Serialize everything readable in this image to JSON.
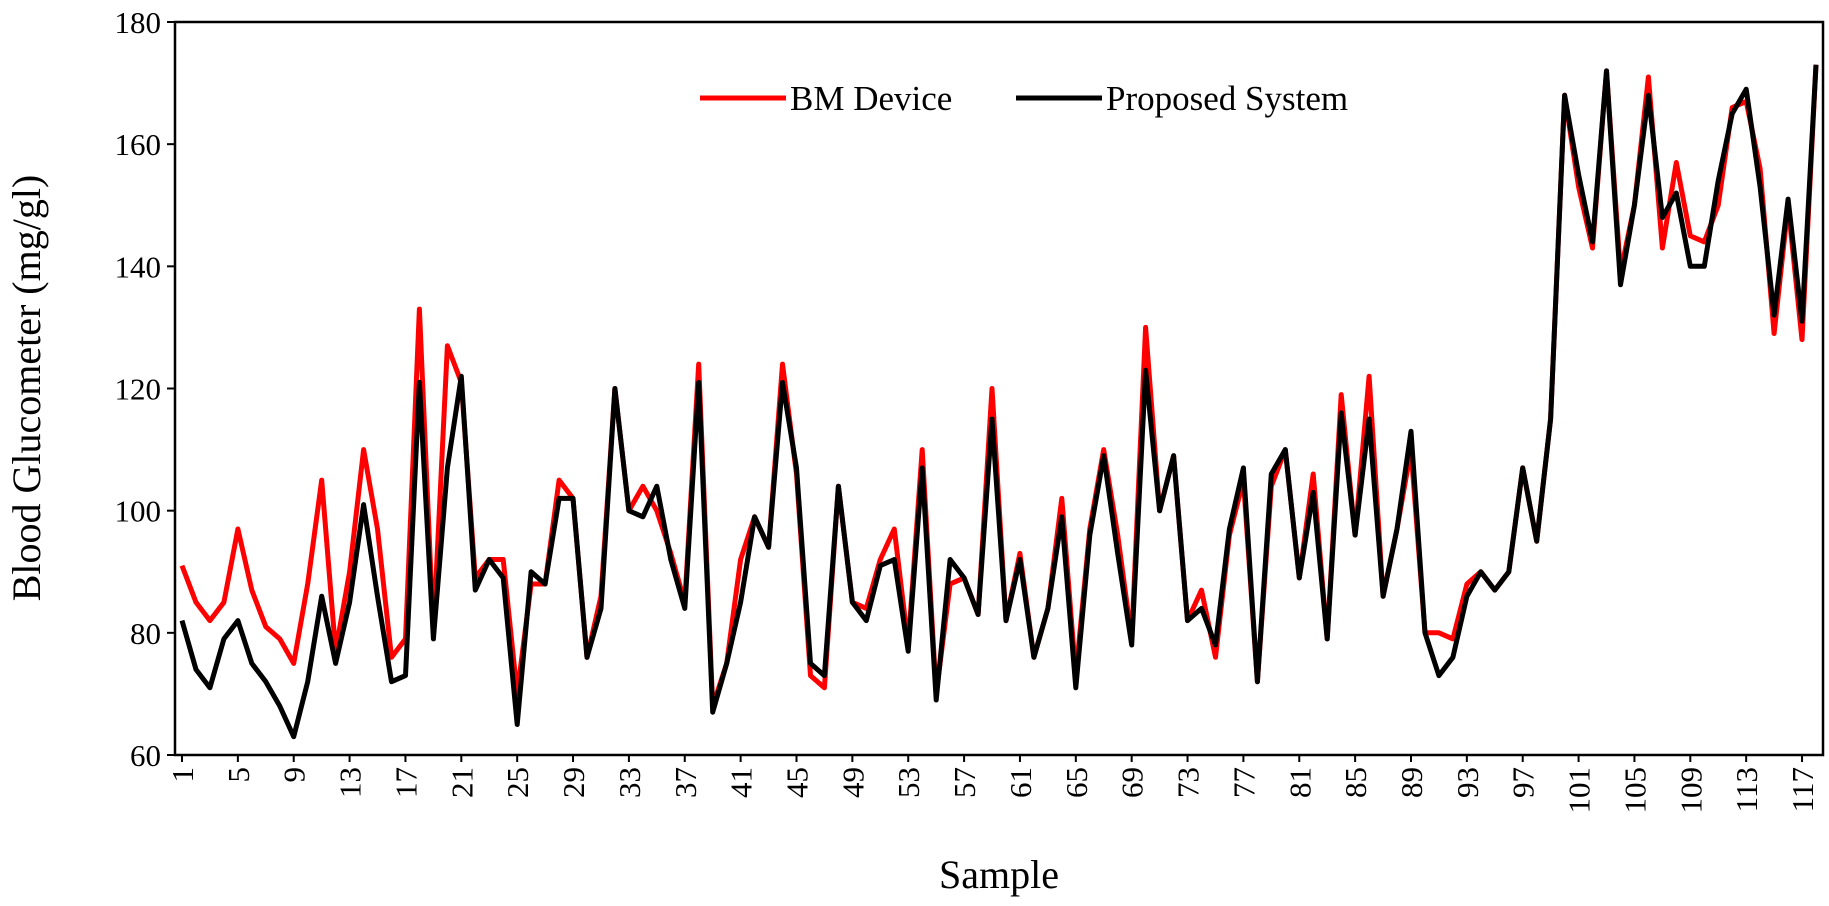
{
  "chart_data": {
    "type": "line",
    "title": "",
    "xlabel": "Sample",
    "ylabel": "Blood Glucometer (mg/gl)",
    "x": [
      1,
      2,
      3,
      4,
      5,
      6,
      7,
      8,
      9,
      10,
      11,
      12,
      13,
      14,
      15,
      16,
      17,
      18,
      19,
      20,
      21,
      22,
      23,
      24,
      25,
      26,
      27,
      28,
      29,
      30,
      31,
      32,
      33,
      34,
      35,
      36,
      37,
      38,
      39,
      40,
      41,
      42,
      43,
      44,
      45,
      46,
      47,
      48,
      49,
      50,
      51,
      52,
      53,
      54,
      55,
      56,
      57,
      58,
      59,
      60,
      61,
      62,
      63,
      64,
      65,
      66,
      67,
      68,
      69,
      70,
      71,
      72,
      73,
      74,
      75,
      76,
      77,
      78,
      79,
      80,
      81,
      82,
      83,
      84,
      85,
      86,
      87,
      88,
      89,
      90,
      91,
      92,
      93,
      94,
      95,
      96,
      97,
      98,
      99,
      100,
      101,
      102,
      103,
      104,
      105,
      106,
      107,
      108,
      109,
      110,
      111,
      112,
      113,
      114,
      115,
      116,
      117,
      118
    ],
    "x_tick_labels": [
      "1",
      "5",
      "9",
      "13",
      "17",
      "21",
      "25",
      "29",
      "33",
      "37",
      "41",
      "45",
      "49",
      "53",
      "57",
      "61",
      "65",
      "69",
      "73",
      "77",
      "81",
      "85",
      "89",
      "93",
      "97",
      "101",
      "105",
      "109",
      "113",
      "117"
    ],
    "ylim": [
      60,
      180
    ],
    "y_ticks": [
      60,
      80,
      100,
      120,
      140,
      160,
      180
    ],
    "grid": false,
    "legend_position": "top-center",
    "series": [
      {
        "name": "BM Device",
        "color": "#ff0000",
        "values": [
          91,
          85,
          82,
          85,
          97,
          87,
          81,
          79,
          75,
          88,
          105,
          77,
          90,
          110,
          97,
          76,
          79,
          133,
          80,
          127,
          121,
          89,
          92,
          92,
          70,
          88,
          88,
          105,
          102,
          76,
          86,
          120,
          100,
          104,
          100,
          93,
          85,
          124,
          68,
          75,
          92,
          99,
          94,
          124,
          106,
          73,
          71,
          104,
          85,
          84,
          92,
          97,
          78,
          110,
          70,
          88,
          89,
          83,
          120,
          82,
          93,
          76,
          84,
          102,
          73,
          97,
          110,
          96,
          79,
          130,
          100,
          109,
          82,
          87,
          76,
          96,
          105,
          72,
          104,
          110,
          89,
          106,
          79,
          119,
          96,
          122,
          86,
          97,
          110,
          80,
          80,
          79,
          88,
          90,
          87,
          90,
          107,
          95,
          115,
          168,
          153,
          143,
          172,
          139,
          150,
          171,
          143,
          157,
          145,
          144,
          150,
          166,
          167,
          156,
          129,
          150,
          128,
          173
        ]
      },
      {
        "name": "Proposed System",
        "color": "#000000",
        "values": [
          82,
          74,
          71,
          79,
          82,
          75,
          72,
          68,
          63,
          72,
          86,
          75,
          85,
          101,
          86,
          72,
          73,
          121,
          79,
          107,
          122,
          87,
          92,
          89,
          65,
          90,
          88,
          102,
          102,
          76,
          84,
          120,
          100,
          99,
          104,
          92,
          84,
          121,
          67,
          75,
          85,
          99,
          94,
          121,
          107,
          75,
          73,
          104,
          85,
          82,
          91,
          92,
          77,
          107,
          69,
          92,
          89,
          83,
          115,
          82,
          92,
          76,
          84,
          99,
          71,
          96,
          109,
          93,
          78,
          123,
          100,
          109,
          82,
          84,
          78,
          97,
          107,
          72,
          106,
          110,
          89,
          103,
          79,
          116,
          96,
          115,
          86,
          97,
          113,
          80,
          73,
          76,
          86,
          90,
          87,
          90,
          107,
          95,
          115,
          168,
          155,
          144,
          172,
          137,
          150,
          168,
          148,
          152,
          140,
          140,
          154,
          165,
          169,
          153,
          132,
          151,
          131,
          173
        ]
      }
    ]
  }
}
